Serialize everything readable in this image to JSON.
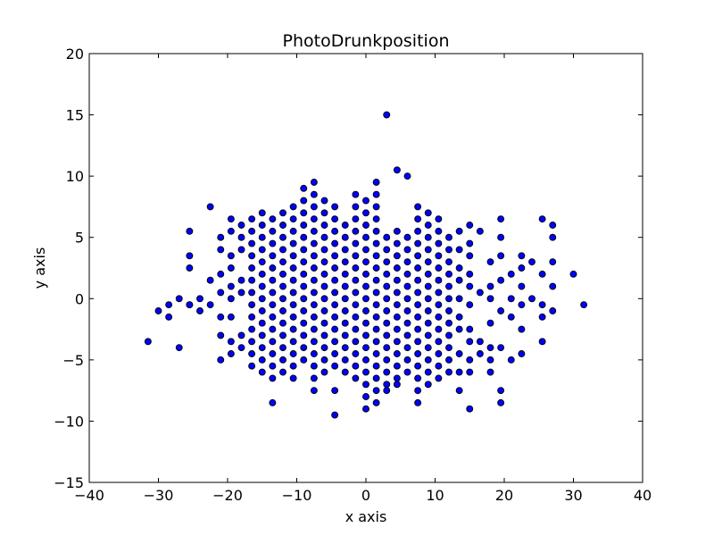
{
  "chart_data": {
    "type": "scatter",
    "title": "PhotoDrunkposition",
    "xlabel": "x axis",
    "ylabel": "y axis",
    "xlim": [
      -40,
      40
    ],
    "ylim": [
      -15,
      20
    ],
    "xticks": [
      -40,
      -30,
      -20,
      -10,
      0,
      10,
      20,
      30,
      40
    ],
    "yticks": [
      -15,
      -10,
      -5,
      0,
      5,
      10,
      15,
      20
    ],
    "grid": false,
    "marker_color": "#0000ff",
    "marker_edge": "#000000",
    "series": [
      {
        "points": [
          [
            3,
            15
          ],
          [
            4.5,
            10.5
          ],
          [
            6,
            10
          ],
          [
            -31.5,
            -3.5
          ],
          [
            -30,
            -1
          ],
          [
            -28.5,
            -0.5
          ],
          [
            -28.5,
            -1.5
          ],
          [
            -27,
            0
          ],
          [
            -27,
            -4
          ],
          [
            -25.5,
            5.5
          ],
          [
            -25.5,
            3.5
          ],
          [
            -25.5,
            2.5
          ],
          [
            -25.5,
            -0.5
          ],
          [
            -24,
            0
          ],
          [
            -24,
            -1
          ],
          [
            -22.5,
            7.5
          ],
          [
            -22.5,
            1.5
          ],
          [
            -22.5,
            -0.5
          ],
          [
            -21,
            5
          ],
          [
            -21,
            4
          ],
          [
            -21,
            2
          ],
          [
            -21,
            0.5
          ],
          [
            -21,
            -1.5
          ],
          [
            -21,
            -3
          ],
          [
            -21,
            -5
          ],
          [
            -19.5,
            6.5
          ],
          [
            -19.5,
            5.5
          ],
          [
            -19.5,
            3.5
          ],
          [
            -19.5,
            2.5
          ],
          [
            -19.5,
            1
          ],
          [
            -19.5,
            0
          ],
          [
            -19.5,
            -1.5
          ],
          [
            -19.5,
            -3.5
          ],
          [
            -19.5,
            -4.5
          ],
          [
            -18,
            6
          ],
          [
            -18,
            5
          ],
          [
            -18,
            4
          ],
          [
            -18,
            1.5
          ],
          [
            -18,
            0.5
          ],
          [
            -18,
            -3
          ],
          [
            -18,
            -4
          ],
          [
            -25.5,
            -0.5
          ],
          [
            31.5,
            -0.5
          ],
          [
            30,
            2
          ],
          [
            27,
            6
          ],
          [
            27,
            5
          ],
          [
            27,
            3
          ],
          [
            27,
            1
          ],
          [
            27,
            -1
          ],
          [
            25.5,
            6.5
          ],
          [
            25.5,
            2
          ],
          [
            25.5,
            -0.5
          ],
          [
            25.5,
            -1.5
          ],
          [
            25.5,
            -3.5
          ],
          [
            24,
            3
          ],
          [
            24,
            0
          ],
          [
            22.5,
            3.5
          ],
          [
            22.5,
            2.5
          ],
          [
            22.5,
            1
          ],
          [
            22.5,
            -0.5
          ],
          [
            22.5,
            -2.5
          ],
          [
            22.5,
            -4.5
          ],
          [
            21,
            2
          ],
          [
            21,
            0
          ],
          [
            21,
            -1.5
          ],
          [
            21,
            -5
          ],
          [
            19.5,
            6.5
          ],
          [
            19.5,
            5
          ],
          [
            19.5,
            3.5
          ],
          [
            19.5,
            1.5
          ],
          [
            19.5,
            -1
          ],
          [
            19.5,
            -4
          ],
          [
            19.5,
            -7.5
          ],
          [
            19.5,
            -8.5
          ],
          [
            18,
            3
          ],
          [
            18,
            1
          ],
          [
            18,
            0
          ],
          [
            18,
            -2
          ],
          [
            18,
            -4
          ],
          [
            18,
            -5
          ],
          [
            18,
            -6
          ],
          [
            16.5,
            5.5
          ],
          [
            16.5,
            0.5
          ],
          [
            16.5,
            -3.5
          ],
          [
            16.5,
            -4.5
          ],
          [
            15,
            6
          ],
          [
            15,
            4.5
          ],
          [
            15,
            3.5
          ],
          [
            15,
            2
          ],
          [
            15,
            1
          ],
          [
            15,
            -0.5
          ],
          [
            15,
            -2.5
          ],
          [
            15,
            -3.5
          ],
          [
            15,
            -5
          ],
          [
            15,
            -6
          ],
          [
            15,
            -9
          ],
          [
            13.5,
            5.5
          ],
          [
            13.5,
            4
          ],
          [
            13.5,
            2.5
          ],
          [
            13.5,
            1.5
          ],
          [
            13.5,
            0
          ],
          [
            13.5,
            -1.5
          ],
          [
            13.5,
            -2.5
          ],
          [
            13.5,
            -4.5
          ],
          [
            13.5,
            -6
          ],
          [
            13.5,
            -7.5
          ],
          [
            3,
            -7.5
          ],
          [
            4.5,
            -7
          ],
          [
            -4.5,
            -9.5
          ],
          [
            1.5,
            -8.5
          ],
          [
            0,
            -9
          ],
          [
            -13.5,
            -8.5
          ],
          [
            -7.5,
            -7.5
          ],
          [
            -4.5,
            -7.5
          ],
          [
            7.5,
            -8.5
          ]
        ]
      }
    ],
    "grid_field": {
      "x_start": -16.5,
      "x_step": 1.5,
      "x_end": 12,
      "y_step": 1
    }
  }
}
